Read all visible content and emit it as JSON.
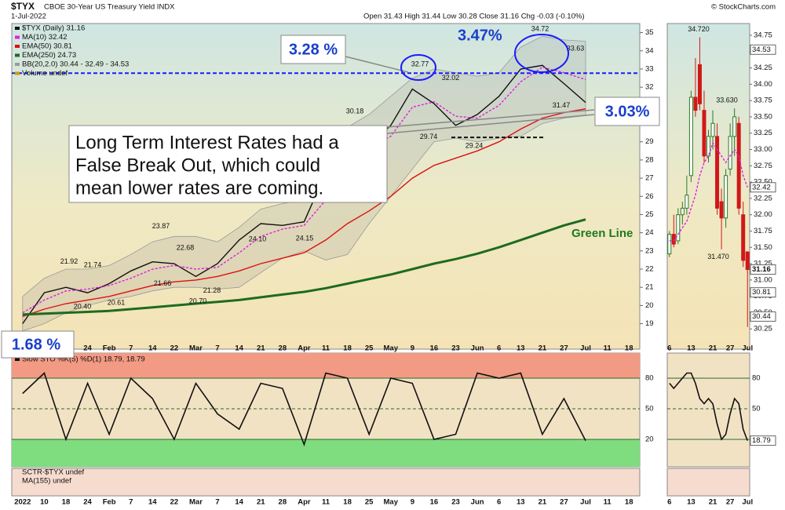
{
  "header": {
    "symbol": "$TYX",
    "name": "CBOE 30-Year US Treasury Yield INDX",
    "date": "1-Jul-2022",
    "quote": "Open 31.43  High 31.44  Low 30.28  Close 31.16  Chg -0.03 (-0.10%)",
    "source": "© StockCharts.com"
  },
  "callouts": {
    "left_peak": "3.28 %",
    "right_peak": "3.47%",
    "current": "3.03%",
    "start": "1.68 %",
    "note": [
      "Long Term Interest Rates had a",
      "False Break Out, which could",
      "mean lower rates are coming."
    ],
    "green_line": "Green Line"
  },
  "chart_data": [
    {
      "type": "line",
      "title": "$TYX (Daily)",
      "categories": [
        "2022",
        "10",
        "18",
        "24",
        "Feb",
        "7",
        "14",
        "22",
        "Mar",
        "7",
        "14",
        "21",
        "28",
        "Apr",
        "11",
        "18",
        "25",
        "May",
        "9",
        "16",
        "23",
        "Jun",
        "6",
        "13",
        "21",
        "27",
        "Jul",
        "11",
        "18"
      ],
      "series": [
        {
          "name": "$TYX (Daily) 31.16",
          "color": "#111111",
          "values": [
            19.0,
            20.7,
            21.0,
            20.7,
            21.2,
            21.9,
            22.4,
            22.3,
            21.6,
            22.3,
            23.6,
            24.5,
            24.4,
            24.6,
            27.3,
            29.0,
            28.8,
            29.9,
            31.9,
            31.1,
            29.9,
            30.5,
            31.5,
            33.0,
            33.2,
            32.2,
            31.16,
            null,
            null
          ]
        },
        {
          "name": "MA(10) 32.42",
          "color": "#e020e0",
          "dashed": true,
          "values": [
            19.6,
            20.3,
            20.8,
            20.9,
            21.1,
            21.5,
            22.0,
            22.2,
            22.0,
            22.1,
            22.9,
            23.8,
            24.2,
            24.4,
            25.8,
            27.8,
            28.6,
            29.3,
            30.9,
            31.2,
            30.4,
            30.3,
            31.0,
            32.3,
            33.1,
            32.8,
            32.42,
            null,
            null
          ]
        },
        {
          "name": "EMA(50) 30.81",
          "color": "#dd1111",
          "values": [
            19.4,
            19.8,
            20.1,
            20.3,
            20.5,
            20.8,
            21.1,
            21.3,
            21.4,
            21.6,
            21.9,
            22.3,
            22.6,
            22.9,
            23.6,
            24.5,
            25.2,
            26.0,
            27.0,
            27.7,
            28.1,
            28.5,
            29.0,
            29.7,
            30.3,
            30.6,
            30.81,
            null,
            null
          ]
        },
        {
          "name": "EMA(250) 24.73",
          "color": "#1e6b1e",
          "width": 3,
          "values": [
            19.5,
            19.55,
            19.6,
            19.65,
            19.7,
            19.8,
            19.9,
            20.0,
            20.1,
            20.2,
            20.3,
            20.45,
            20.6,
            20.75,
            20.95,
            21.2,
            21.45,
            21.7,
            22.0,
            22.3,
            22.55,
            22.85,
            23.2,
            23.6,
            24.0,
            24.4,
            24.73,
            null,
            null
          ]
        },
        {
          "name": "BB(20,2.0) 30.44 - 32.49 - 34.53",
          "color": "#9a9a9a",
          "band": true,
          "upper": [
            20.5,
            21.5,
            22.0,
            22.0,
            22.2,
            22.8,
            23.5,
            23.8,
            23.8,
            23.5,
            24.3,
            25.3,
            25.6,
            25.8,
            27.5,
            29.8,
            30.5,
            31.5,
            32.5,
            33.0,
            32.8,
            32.6,
            32.8,
            34.2,
            34.8,
            34.6,
            34.53,
            null,
            null
          ],
          "lower": [
            18.6,
            19.0,
            19.6,
            20.0,
            20.3,
            20.5,
            20.8,
            21.0,
            21.0,
            20.9,
            21.0,
            21.8,
            22.6,
            23.0,
            22.5,
            22.8,
            24.5,
            26.0,
            27.5,
            29.0,
            29.2,
            29.0,
            29.2,
            29.3,
            30.0,
            30.3,
            30.44,
            null,
            null
          ]
        }
      ],
      "legend_extra": {
        "name": "Volume undef",
        "color": "#c8a000"
      },
      "ylim": [
        17.6,
        35.5
      ],
      "yticks": [
        19,
        20,
        21,
        22,
        23,
        24,
        25,
        26,
        27,
        28,
        29,
        30,
        31,
        32,
        33,
        34,
        35
      ],
      "grid": false,
      "reference_lines": [
        {
          "value": 32.77,
          "color": "#1a1aff"
        },
        {
          "value": 29.24,
          "color": "#111111"
        }
      ],
      "value_labels": [
        21.92,
        21.74,
        23.87,
        22.68,
        21.66,
        21.28,
        20.61,
        {
          "value": 20.4,
          "label": "20.40"
        },
        {
          "value": 20.7,
          "label": "20.70"
        },
        {
          "value": 24.1,
          "label": "24.10"
        },
        24.15,
        30.18,
        32.77,
        32.02,
        29.74,
        29.24,
        34.72,
        33.63,
        31.47
      ]
    },
    {
      "type": "line",
      "title": "Slow STO %K(5) %D(1) 18.79, 18.79",
      "series": [
        {
          "name": "Slow STO %K(5) %D(1) 18.79, 18.79",
          "color": "#111111",
          "values": [
            65,
            85,
            20,
            75,
            25,
            80,
            60,
            20,
            75,
            45,
            30,
            75,
            70,
            15,
            85,
            80,
            25,
            80,
            75,
            20,
            25,
            85,
            80,
            85,
            25,
            60,
            18.79,
            null,
            null
          ]
        }
      ],
      "ylim": [
        -6.9,
        104.6
      ],
      "yticks": [
        20,
        50,
        80
      ],
      "zone_colors": [
        "#7fdc7f",
        "#f29a84"
      ],
      "lower_panel": [
        "SCTR-$TYX undef",
        "MA(155) undef"
      ]
    },
    {
      "type": "candlestick",
      "categories": [
        "6",
        null,
        null,
        null,
        null,
        "13",
        null,
        null,
        null,
        null,
        "21",
        null,
        null,
        null,
        "27",
        null,
        null,
        null,
        "Jul"
      ],
      "open": [
        31.4,
        31.7,
        31.6,
        32.0,
        32.1,
        32.6,
        33.8,
        34.3,
        33.6,
        32.9,
        33.2,
        33.2,
        32.2,
        31.95,
        32.7,
        33.2,
        33.4,
        32.0,
        31.43
      ],
      "high": [
        31.75,
        32.0,
        32.1,
        32.2,
        32.6,
        33.9,
        34.4,
        34.72,
        33.9,
        33.3,
        33.6,
        33.4,
        32.4,
        32.7,
        33.4,
        33.63,
        33.5,
        32.2,
        31.44
      ],
      "low": [
        31.35,
        31.5,
        31.55,
        31.85,
        32.0,
        32.5,
        33.5,
        33.6,
        32.8,
        32.8,
        33.0,
        32.0,
        31.47,
        31.8,
        32.6,
        32.9,
        32.0,
        31.2,
        30.28
      ],
      "close": [
        31.7,
        31.55,
        32.0,
        32.1,
        32.3,
        33.8,
        33.6,
        33.7,
        32.9,
        33.2,
        33.4,
        32.1,
        31.95,
        32.6,
        33.2,
        33.5,
        32.1,
        31.3,
        31.16
      ],
      "ma": {
        "color": "#e020e0",
        "values": [
          31.6,
          31.6,
          31.7,
          31.8,
          31.9,
          32.1,
          32.3,
          32.6,
          32.8,
          32.9,
          33.1,
          33.0,
          32.9,
          32.8,
          32.9,
          33.0,
          32.9,
          32.6,
          32.42
        ]
      },
      "ylim": [
        29.94,
        34.93
      ],
      "yticks": [
        {
          "value": 30.25,
          "label": "30.25"
        },
        {
          "value": 30.5,
          "label": "30.50"
        },
        {
          "value": 30.75,
          "label": "30.75"
        },
        {
          "value": 31,
          "label": "31.00"
        },
        {
          "value": 31.25,
          "label": "31.25"
        },
        {
          "value": 31.5,
          "label": "31.50"
        },
        {
          "value": 31.75,
          "label": "31.75"
        },
        {
          "value": 32,
          "label": "32.00"
        },
        {
          "value": 32.25,
          "label": "32.25"
        },
        {
          "value": 32.5,
          "label": "32.50"
        },
        {
          "value": 32.75,
          "label": "32.75"
        },
        {
          "value": 33,
          "label": "33.00"
        },
        {
          "value": 33.25,
          "label": "33.25"
        },
        {
          "value": 33.5,
          "label": "33.50"
        },
        {
          "value": 33.75,
          "label": "33.75"
        },
        {
          "value": 34,
          "label": "34.00"
        },
        {
          "value": 34.25,
          "label": "34.25"
        },
        {
          "value": 34.5,
          "label": "34.50"
        },
        {
          "value": 34.75,
          "label": "34.75"
        }
      ],
      "axis_markers": [
        34.53,
        32.42,
        31.16,
        30.81,
        30.44
      ],
      "value_labels": [
        {
          "value": 34.72,
          "label": "34.720"
        },
        {
          "value": 33.63,
          "label": "33.630"
        },
        {
          "value": 31.47,
          "label": "31.470"
        }
      ]
    },
    {
      "type": "line",
      "series": [
        {
          "color": "#111111",
          "values": [
            75,
            70,
            75,
            80,
            85,
            85,
            75,
            60,
            55,
            60,
            55,
            35,
            20,
            25,
            45,
            60,
            55,
            30,
            18.79
          ]
        }
      ],
      "ylim": [
        -6.9,
        104.6
      ],
      "yticks": [
        20,
        50,
        80
      ],
      "axis_markers": [
        18.79
      ]
    }
  ]
}
